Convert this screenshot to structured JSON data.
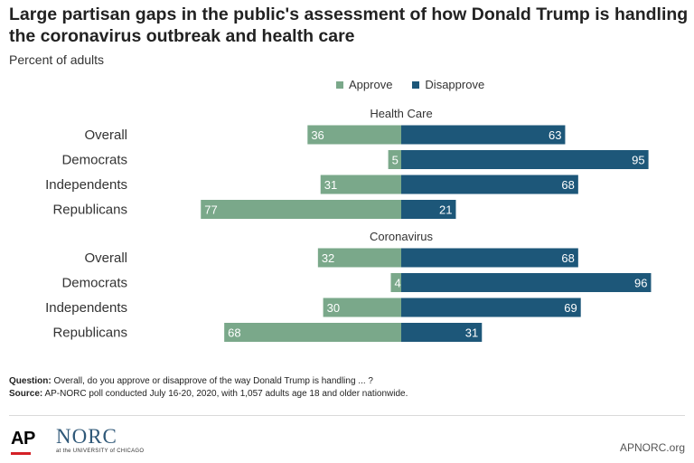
{
  "title": "Large partisan gaps in the public's assessment of how Donald Trump is handling the coronavirus outbreak and health care",
  "subtitle": "Percent of adults",
  "legend": {
    "approve_label": "Approve",
    "disapprove_label": "Disapprove"
  },
  "colors": {
    "approve": "#7aa88a",
    "disapprove": "#1d5779"
  },
  "chart_data": {
    "type": "bar",
    "orientation": "horizontal-diverging",
    "groups": [
      {
        "name": "Health Care",
        "categories": [
          "Overall",
          "Democrats",
          "Independents",
          "Republicans"
        ],
        "series": [
          {
            "name": "Approve",
            "values": [
              36,
              5,
              31,
              77
            ]
          },
          {
            "name": "Disapprove",
            "values": [
              63,
              95,
              68,
              21
            ]
          }
        ]
      },
      {
        "name": "Coronavirus",
        "categories": [
          "Overall",
          "Democrats",
          "Independents",
          "Republicans"
        ],
        "series": [
          {
            "name": "Approve",
            "values": [
              32,
              4,
              30,
              68
            ]
          },
          {
            "name": "Disapprove",
            "values": [
              68,
              96,
              69,
              31
            ]
          }
        ]
      }
    ],
    "xlim": [
      -100,
      100
    ],
    "grid": false,
    "legend_position": "top-center"
  },
  "footnotes": {
    "question_label": "Question:",
    "question_text": "Overall, do you approve or disapprove of the way Donald Trump is handling ... ?",
    "source_label": "Source:",
    "source_text": "AP-NORC poll conducted July 16-20, 2020, with 1,057 adults age 18 and older nationwide."
  },
  "branding": {
    "ap_logo": "AP",
    "norc_logo": "NORC",
    "norc_sub": "at the UNIVERSITY of CHICAGO",
    "site": "APNORC.org"
  }
}
